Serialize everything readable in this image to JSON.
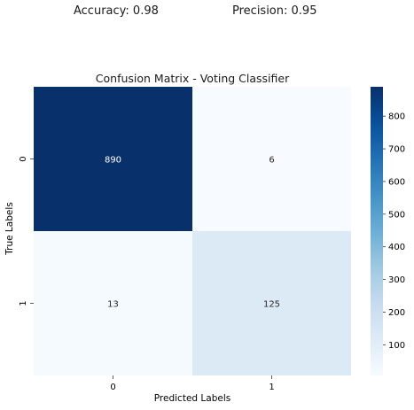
{
  "metrics": {
    "accuracy": "Accuracy: 0.98",
    "precision": "Precision: 0.95"
  },
  "chart_data": {
    "type": "heatmap",
    "title": "Confusion Matrix - Voting Classifier",
    "xlabel": "Predicted Labels",
    "ylabel": "True Labels",
    "x_categories": [
      "0",
      "1"
    ],
    "y_categories": [
      "0",
      "1"
    ],
    "values": [
      [
        890,
        6
      ],
      [
        13,
        125
      ]
    ],
    "colormap": "Blues",
    "colorbar": {
      "range": [
        6,
        890
      ],
      "ticks": [
        100,
        200,
        300,
        400,
        500,
        600,
        700,
        800
      ],
      "position": "right"
    },
    "colors": {
      "low": "#f7fbff",
      "high": "#08306b"
    }
  }
}
